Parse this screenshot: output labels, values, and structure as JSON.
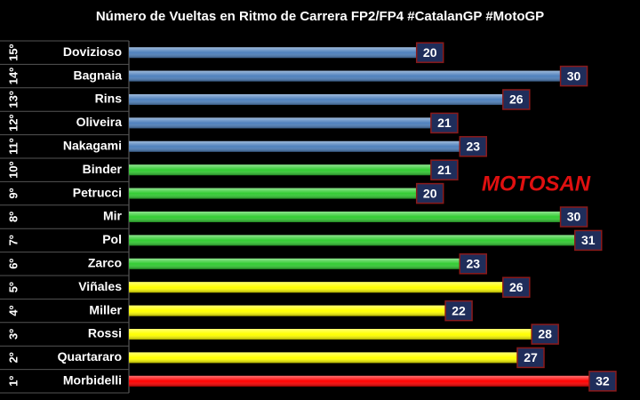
{
  "chart_data": {
    "type": "bar",
    "orientation": "horizontal",
    "title": "Número de Vueltas en Ritmo de Carrera FP2/FP4 #CatalanGP #MotoGP",
    "watermark": "MOTOSAN",
    "ranks": [
      "15º",
      "14º",
      "13º",
      "12º",
      "11º",
      "10º",
      "9º",
      "8º",
      "7º",
      "6º",
      "5º",
      "4º",
      "3º",
      "2º",
      "1º"
    ],
    "categories": [
      "Dovizioso",
      "Bagnaia",
      "Rins",
      "Oliveira",
      "Nakagami",
      "Binder",
      "Petrucci",
      "Mir",
      "Pol",
      "Zarco",
      "Viñales",
      "Miller",
      "Rossi",
      "Quartararo",
      "Morbidelli"
    ],
    "values": [
      20,
      30,
      26,
      21,
      23,
      21,
      20,
      30,
      31,
      23,
      26,
      22,
      28,
      27,
      32
    ],
    "colors": [
      "#4f81bd",
      "#4f81bd",
      "#4f81bd",
      "#4f81bd",
      "#4f81bd",
      "#33cc33",
      "#33cc33",
      "#33cc33",
      "#33cc33",
      "#33cc33",
      "#ffff00",
      "#ffff00",
      "#ffff00",
      "#ffff00",
      "#ff0000"
    ],
    "xlim": [
      0,
      34.6
    ]
  }
}
